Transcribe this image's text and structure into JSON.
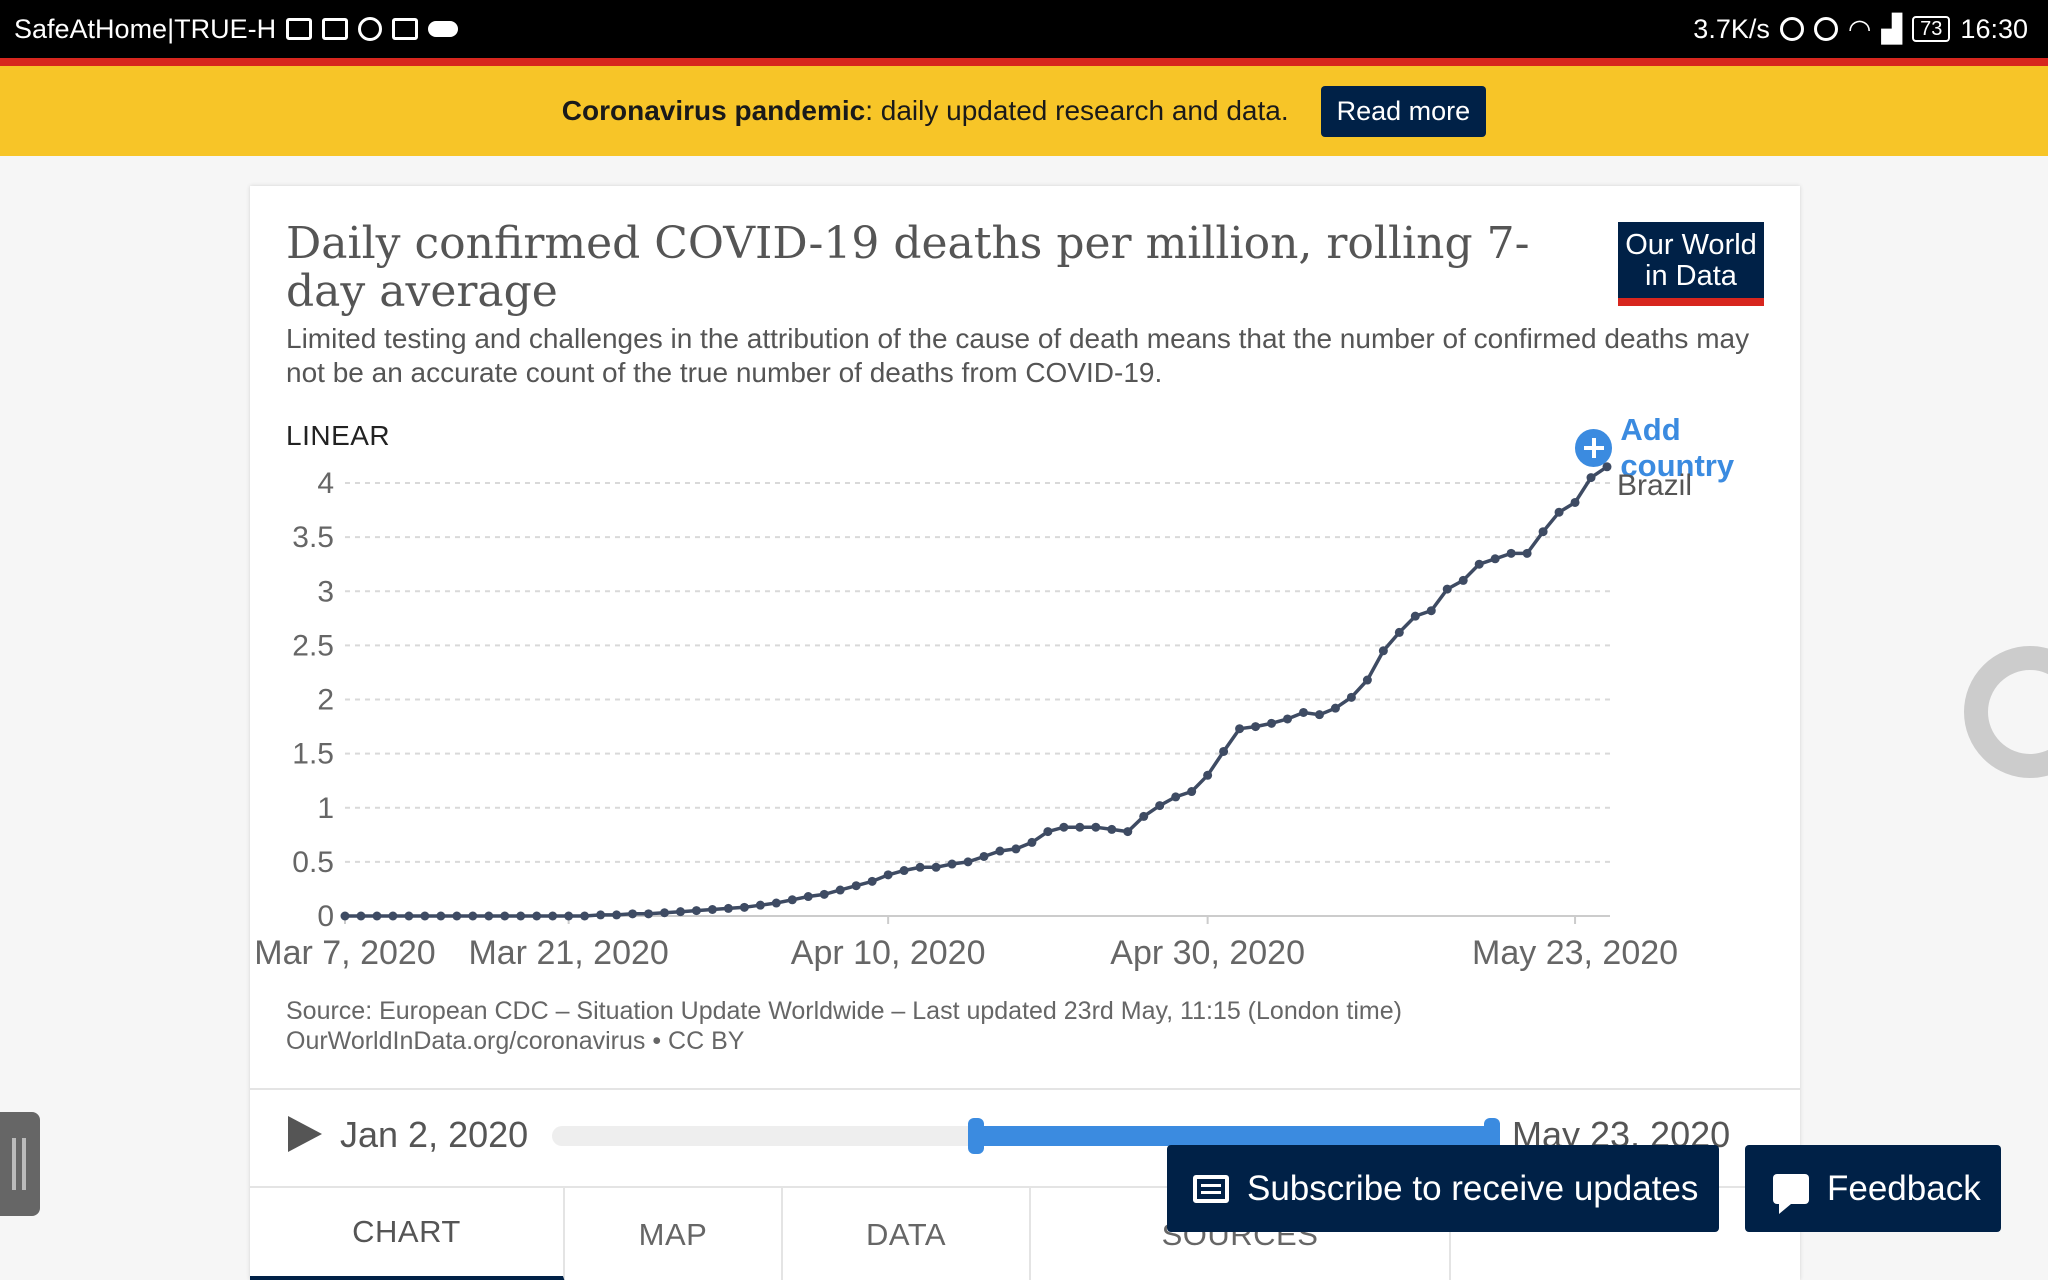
{
  "status_bar": {
    "app_label": "SafeAtHome|TRUE-H",
    "speed": "3.7K/s",
    "battery": "73",
    "time": "16:30"
  },
  "banner": {
    "bold_text": "Coronavirus pandemic",
    "text": ": daily updated research and data.",
    "button_label": "Read more"
  },
  "header": {
    "title": "Daily confirmed COVID-19 deaths per million, rolling 7-day average",
    "subtitle": "Limited testing and challenges in the attribution of the cause of death means that the number of confirmed deaths may not be an accurate count of the true number of deaths from COVID-19.",
    "logo_line1": "Our World",
    "logo_line2": "in Data",
    "scale_toggle": "LINEAR",
    "add_country": "Add country"
  },
  "chart_data": {
    "type": "line",
    "title": "Daily confirmed COVID-19 deaths per million, rolling 7-day average",
    "xlabel": "",
    "ylabel": "",
    "ylim": [
      0,
      4
    ],
    "yticks": [
      "0",
      "0.5",
      "1",
      "1.5",
      "2",
      "2.5",
      "3",
      "3.5",
      "4"
    ],
    "xticks": [
      {
        "day": 0,
        "label": "Mar 7, 2020"
      },
      {
        "day": 14,
        "label": "Mar 21, 2020"
      },
      {
        "day": 34,
        "label": "Apr 10, 2020"
      },
      {
        "day": 54,
        "label": "Apr 30, 2020"
      },
      {
        "day": 77,
        "label": "May 23, 2020"
      }
    ],
    "grid": true,
    "series": [
      {
        "name": "Brazil",
        "color": "#3e4b63",
        "values": [
          0,
          0,
          0,
          0,
          0,
          0,
          0,
          0,
          0,
          0,
          0,
          0,
          0,
          0,
          0,
          0,
          0.01,
          0.01,
          0.02,
          0.02,
          0.03,
          0.04,
          0.05,
          0.06,
          0.07,
          0.08,
          0.1,
          0.12,
          0.15,
          0.18,
          0.2,
          0.24,
          0.28,
          0.32,
          0.38,
          0.42,
          0.45,
          0.45,
          0.48,
          0.5,
          0.55,
          0.6,
          0.62,
          0.68,
          0.78,
          0.82,
          0.82,
          0.82,
          0.8,
          0.78,
          0.92,
          1.02,
          1.1,
          1.15,
          1.3,
          1.52,
          1.73,
          1.75,
          1.78,
          1.82,
          1.88,
          1.86,
          1.92,
          2.02,
          2.18,
          2.45,
          2.62,
          2.77,
          2.82,
          3.02,
          3.1,
          3.25,
          3.3,
          3.35,
          3.35,
          3.55,
          3.73,
          3.82,
          4.05,
          4.15
        ]
      }
    ]
  },
  "source": {
    "line1": "Source: European CDC – Situation Update Worldwide – Last updated 23rd May, 11:15 (London time)",
    "line2": "OurWorldInData.org/coronavirus • CC BY"
  },
  "timeline": {
    "start_label": "Jan 2, 2020",
    "end_label": "May 23, 2020"
  },
  "tabs": [
    "CHART",
    "MAP",
    "DATA",
    "SOURCES"
  ],
  "buttons": {
    "subscribe": "Subscribe to receive updates",
    "feedback": "Feedback"
  }
}
